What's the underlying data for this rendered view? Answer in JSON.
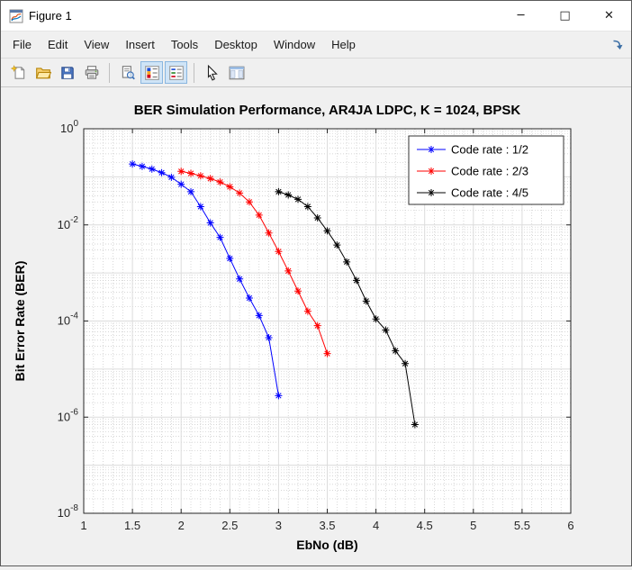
{
  "window": {
    "title": "Figure 1",
    "controls": {
      "minimize_glyph": "─",
      "maximize_glyph": "□",
      "close_glyph": "✕"
    }
  },
  "menu": {
    "items": [
      "File",
      "Edit",
      "View",
      "Insert",
      "Tools",
      "Desktop",
      "Window",
      "Help"
    ]
  },
  "toolbar": {
    "buttons": [
      "new-figure",
      "open-file",
      "save-figure",
      "print-figure",
      "print-preview",
      "insert-colorbar",
      "insert-legend",
      "edit-plot",
      "plot-tools"
    ],
    "toggled_on": [
      "insert-colorbar",
      "insert-legend"
    ]
  },
  "chart_data": {
    "type": "line",
    "title": "BER Simulation Performance, AR4JA LDPC, K = 1024, BPSK",
    "xlabel": "EbNo (dB)",
    "ylabel": "Bit Error Rate (BER)",
    "xlim": [
      1,
      6
    ],
    "ylog": true,
    "ylim_exp": [
      -8,
      0
    ],
    "xticks": [
      1,
      1.5,
      2,
      2.5,
      3,
      3.5,
      4,
      4.5,
      5,
      5.5,
      6
    ],
    "xtick_labels": [
      "1",
      "1.5",
      "2",
      "2.5",
      "3",
      "3.5",
      "4",
      "4.5",
      "5",
      "5.5",
      "6"
    ],
    "ytick_exponents": [
      0,
      -2,
      -4,
      -6,
      -8
    ],
    "grid": true,
    "minor_grid": true,
    "marker": "asterisk",
    "legend_position": "northeast",
    "series": [
      {
        "name": "Code rate : 1/2",
        "color": "#0000ff",
        "x": [
          1.5,
          1.6,
          1.7,
          1.8,
          1.9,
          2.0,
          2.1,
          2.2,
          2.3,
          2.4,
          2.5,
          2.6,
          2.7,
          2.8,
          2.9,
          3.0
        ],
        "y": [
          0.185,
          0.165,
          0.145,
          0.122,
          0.098,
          0.07,
          0.049,
          0.024,
          0.011,
          0.0055,
          0.002,
          0.00075,
          0.0003,
          0.00013,
          4.5e-05,
          2.8e-06
        ]
      },
      {
        "name": "Code rate : 2/3",
        "color": "#ff0000",
        "x": [
          2.0,
          2.1,
          2.2,
          2.3,
          2.4,
          2.5,
          2.6,
          2.7,
          2.8,
          2.9,
          3.0,
          3.1,
          3.2,
          3.3,
          3.4,
          3.5
        ],
        "y": [
          0.13,
          0.118,
          0.105,
          0.092,
          0.078,
          0.062,
          0.046,
          0.03,
          0.016,
          0.0068,
          0.0028,
          0.0011,
          0.00042,
          0.00016,
          8e-05,
          2.1e-05
        ]
      },
      {
        "name": "Code rate : 4/5",
        "color": "#000000",
        "x": [
          3.0,
          3.1,
          3.2,
          3.3,
          3.4,
          3.5,
          3.6,
          3.7,
          3.8,
          3.9,
          4.0,
          4.1,
          4.2,
          4.3,
          4.4
        ],
        "y": [
          0.049,
          0.042,
          0.034,
          0.024,
          0.014,
          0.0075,
          0.0038,
          0.0017,
          0.0007,
          0.00026,
          0.00011,
          6.5e-05,
          2.4e-05,
          1.3e-05,
          7e-07
        ]
      }
    ]
  }
}
